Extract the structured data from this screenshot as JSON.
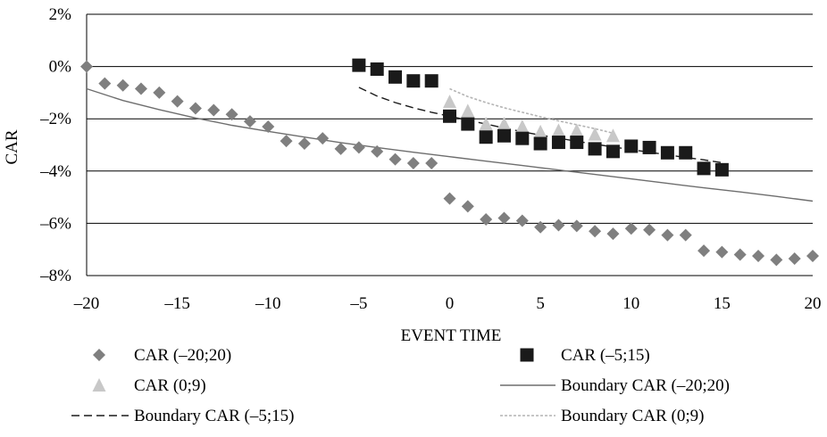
{
  "chart_data": {
    "type": "scatter",
    "title": "",
    "xlabel": "EVENT TIME",
    "ylabel": "CAR",
    "xlim": [
      -20,
      20
    ],
    "ylim": [
      -8,
      2
    ],
    "x_ticks": [
      -20,
      -15,
      -10,
      -5,
      0,
      5,
      10,
      15,
      20
    ],
    "x_tick_labels": [
      "–20",
      "–15",
      "–10",
      "–5",
      "0",
      "5",
      "10",
      "15",
      "20"
    ],
    "y_ticks": [
      2,
      0,
      -2,
      -4,
      -6,
      -8
    ],
    "y_tick_labels": [
      "2%",
      "0%",
      "–2%",
      "–4%",
      "–6%",
      "–8%"
    ],
    "y_unit": "%",
    "grid": "horizontal",
    "legend_position": "bottom",
    "series": [
      {
        "name": "CAR (–20;20)",
        "kind": "marker",
        "marker": "diamond",
        "color": "#7f7f7f",
        "x": [
          -20,
          -19,
          -18,
          -17,
          -16,
          -15,
          -14,
          -13,
          -12,
          -11,
          -10,
          -9,
          -8,
          -7,
          -6,
          -5,
          -4,
          -3,
          -2,
          -1,
          0,
          1,
          2,
          3,
          4,
          5,
          6,
          7,
          8,
          9,
          10,
          11,
          12,
          13,
          14,
          15,
          16,
          17,
          18,
          19,
          20
        ],
        "y": [
          0.0,
          -0.65,
          -0.72,
          -0.85,
          -1.0,
          -1.33,
          -1.6,
          -1.67,
          -1.83,
          -2.1,
          -2.3,
          -2.85,
          -2.95,
          -2.75,
          -3.15,
          -3.1,
          -3.25,
          -3.55,
          -3.7,
          -3.7,
          -5.05,
          -5.35,
          -5.85,
          -5.8,
          -5.9,
          -6.15,
          -6.07,
          -6.1,
          -6.3,
          -6.4,
          -6.2,
          -6.25,
          -6.45,
          -6.45,
          -7.05,
          -7.1,
          -7.2,
          -7.25,
          -7.4,
          -7.35,
          -7.25
        ]
      },
      {
        "name": "CAR (–5;15)",
        "kind": "marker",
        "marker": "square",
        "color": "#1a1a1a",
        "x": [
          -5,
          -4,
          -3,
          -2,
          -1,
          0,
          1,
          2,
          3,
          4,
          5,
          6,
          7,
          8,
          9,
          10,
          11,
          12,
          13,
          14,
          15
        ],
        "y": [
          0.05,
          -0.1,
          -0.4,
          -0.55,
          -0.55,
          -1.9,
          -2.2,
          -2.7,
          -2.65,
          -2.75,
          -2.95,
          -2.9,
          -2.9,
          -3.15,
          -3.25,
          -3.05,
          -3.1,
          -3.3,
          -3.3,
          -3.9,
          -3.95
        ]
      },
      {
        "name": "CAR (0;9)",
        "kind": "marker",
        "marker": "triangle",
        "color": "#c8c8c8",
        "x": [
          0,
          1,
          2,
          3,
          4,
          5,
          6,
          7,
          8,
          9
        ],
        "y": [
          -1.35,
          -1.7,
          -2.2,
          -2.2,
          -2.3,
          -2.5,
          -2.45,
          -2.45,
          -2.6,
          -2.65
        ]
      },
      {
        "name": "Boundary CAR (–20;20)",
        "kind": "line",
        "dash": "solid",
        "color": "#6e6e6e",
        "x": [
          -20,
          -18,
          -16,
          -14,
          -12,
          -10,
          -8,
          -6,
          -4,
          -2,
          0,
          2,
          4,
          6,
          8,
          10,
          12,
          14,
          16,
          18,
          20
        ],
        "y": [
          -0.85,
          -1.3,
          -1.65,
          -1.97,
          -2.25,
          -2.48,
          -2.7,
          -2.91,
          -3.1,
          -3.28,
          -3.45,
          -3.62,
          -3.79,
          -3.96,
          -4.13,
          -4.3,
          -4.47,
          -4.64,
          -4.8,
          -4.97,
          -5.15
        ]
      },
      {
        "name": "Boundary CAR (–5;15)",
        "kind": "line",
        "dash": "dashed",
        "color": "#1a1a1a",
        "x": [
          -5,
          -4,
          -3,
          -2,
          -1,
          0,
          1,
          2,
          3,
          4,
          5,
          6,
          7,
          8,
          9,
          10,
          11,
          12,
          13,
          14,
          15
        ],
        "y": [
          -0.8,
          -1.13,
          -1.38,
          -1.58,
          -1.75,
          -1.9,
          -2.05,
          -2.2,
          -2.35,
          -2.5,
          -2.62,
          -2.74,
          -2.86,
          -2.97,
          -3.08,
          -3.18,
          -3.28,
          -3.38,
          -3.48,
          -3.57,
          -3.68
        ]
      },
      {
        "name": "Boundary CAR (0;9)",
        "kind": "line",
        "dash": "dotted",
        "color": "#b4b4b4",
        "x": [
          0,
          1,
          2,
          3,
          4,
          5,
          6,
          7,
          8,
          9
        ],
        "y": [
          -0.85,
          -1.15,
          -1.38,
          -1.58,
          -1.75,
          -1.92,
          -2.08,
          -2.23,
          -2.38,
          -2.55
        ]
      }
    ]
  }
}
